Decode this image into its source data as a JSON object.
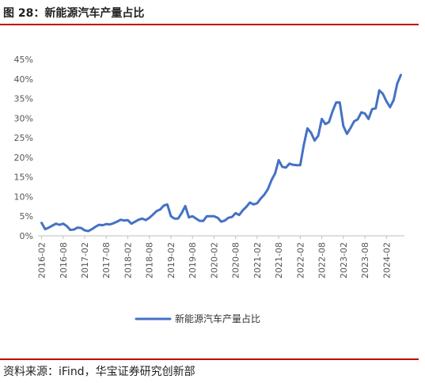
{
  "figure": {
    "title": "图 28：新能源汽车产量占比",
    "source": "资料来源：iFind，华宝证券研究创新部"
  },
  "colors": {
    "line": "#4472c4",
    "rule": "#c00000",
    "axis": "#bfbfbf"
  },
  "chart_data": {
    "type": "line",
    "title": "",
    "xlabel": "",
    "ylabel": "",
    "ylim": [
      0,
      45
    ],
    "yticks": [
      "0%",
      "5%",
      "10%",
      "15%",
      "20%",
      "25%",
      "30%",
      "35%",
      "40%",
      "45%"
    ],
    "xticks": [
      "2016-02",
      "2016-08",
      "2017-02",
      "2017-08",
      "2018-02",
      "2018-08",
      "2019-02",
      "2019-08",
      "2020-02",
      "2020-08",
      "2021-02",
      "2021-08",
      "2022-02",
      "2022-08",
      "2023-02",
      "2023-08",
      "2024-02"
    ],
    "grid": false,
    "legend": "bottom",
    "series": [
      {
        "name": "新能源汽车产量占比",
        "start": "2016-02",
        "frequency": "monthly",
        "values": [
          3.3,
          1.7,
          2.1,
          2.6,
          3.1,
          2.8,
          3.1,
          2.5,
          1.5,
          1.6,
          2.1,
          2.0,
          1.4,
          1.2,
          1.7,
          2.3,
          2.8,
          2.7,
          3.0,
          2.9,
          3.2,
          3.6,
          4.1,
          3.9,
          4.0,
          3.1,
          3.6,
          4.1,
          4.4,
          4.0,
          4.6,
          5.4,
          6.3,
          6.7,
          7.7,
          8.0,
          5.0,
          4.4,
          4.4,
          5.8,
          7.6,
          4.7,
          5.0,
          4.4,
          3.8,
          3.8,
          5.0,
          5.0,
          5.0,
          4.6,
          3.6,
          3.9,
          4.6,
          4.8,
          5.8,
          5.3,
          6.5,
          7.4,
          8.5,
          8.0,
          8.3,
          9.5,
          10.5,
          11.9,
          14.2,
          15.9,
          19.3,
          17.6,
          17.4,
          18.4,
          18.1,
          18.0,
          18.0,
          23.2,
          27.4,
          26.3,
          24.3,
          25.5,
          29.8,
          28.5,
          29.0,
          31.8,
          34.0,
          34.0,
          28.0,
          26.0,
          27.5,
          29.2,
          29.7,
          31.5,
          31.2,
          29.8,
          32.3,
          32.5,
          37.1,
          36.2,
          34.3,
          32.8,
          34.6,
          38.8,
          41.0
        ]
      }
    ]
  }
}
